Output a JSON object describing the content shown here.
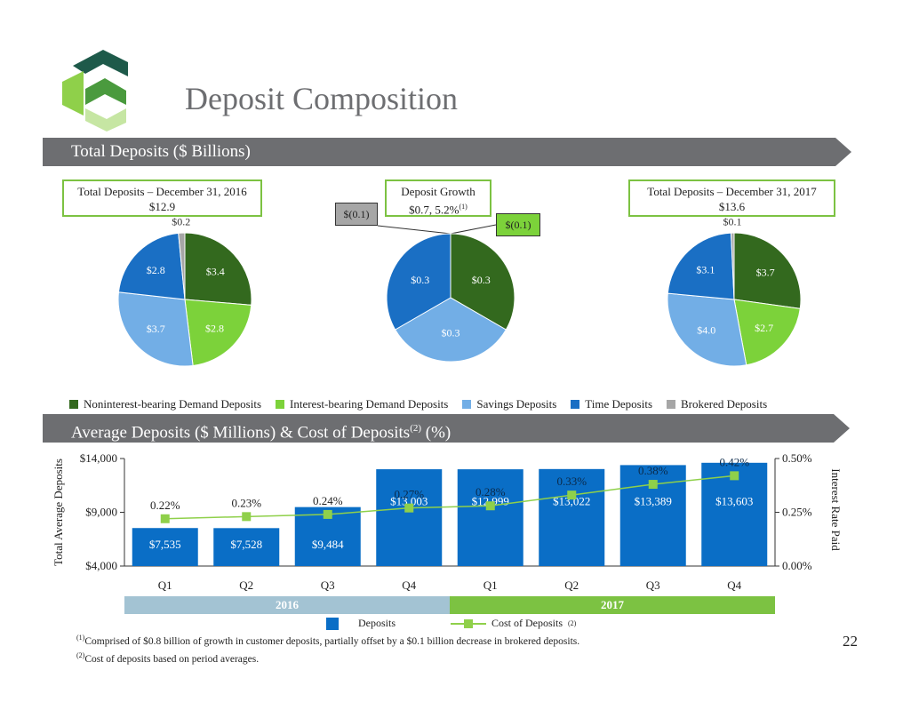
{
  "page": {
    "title": "Deposit Composition",
    "banner_total": "Total Deposits ($ Billions)",
    "banner_avg_main": "Average Deposits ($ Millions) & Cost of Deposits",
    "banner_avg_sup": "(2)",
    "banner_avg_tail": " (%)",
    "page_number": "22"
  },
  "colors": {
    "noninterest": "#33691e",
    "interest": "#7cd23a",
    "savings": "#72aee6",
    "time": "#1a6fc4",
    "brokered": "#a6a6a6",
    "bar": "#0a6ec6",
    "line": "#8fd04a",
    "marker": "#8fd04a",
    "year2016": "#a3c3d3",
    "year2017": "#7cc242",
    "banner": "#6d6e71"
  },
  "callouts": {
    "dec2016_label": "Total Deposits – December 31, 2016",
    "dec2016_value": "$12.9",
    "growth_label": "Deposit Growth",
    "growth_value": "$0.7, 5.2%",
    "growth_sup": "(1)",
    "dec2017_label": "Total Deposits – December 31, 2017",
    "dec2017_value": "$13.6",
    "neg_brokered": "$(0.1)",
    "neg_interest": "$(0.1)"
  },
  "legend": [
    {
      "label": "Noninterest-bearing Demand Deposits",
      "color_key": "noninterest"
    },
    {
      "label": "Interest-bearing Demand Deposits",
      "color_key": "interest"
    },
    {
      "label": "Savings Deposits",
      "color_key": "savings"
    },
    {
      "label": "Time Deposits",
      "color_key": "time"
    },
    {
      "label": "Brokered Deposits",
      "color_key": "brokered"
    }
  ],
  "chart_data": [
    {
      "type": "pie",
      "title": "Total Deposits – December 31, 2016",
      "slices": [
        {
          "label": "Noninterest-bearing Demand Deposits",
          "value": 3.4,
          "text": "$3.4",
          "color_key": "noninterest"
        },
        {
          "label": "Interest-bearing Demand Deposits",
          "value": 2.8,
          "text": "$2.8",
          "color_key": "interest"
        },
        {
          "label": "Savings Deposits",
          "value": 3.7,
          "text": "$3.7",
          "color_key": "savings"
        },
        {
          "label": "Time Deposits",
          "value": 2.8,
          "text": "$2.8",
          "color_key": "time"
        },
        {
          "label": "Brokered Deposits",
          "value": 0.2,
          "text": "$0.2",
          "color_key": "brokered"
        }
      ]
    },
    {
      "type": "pie",
      "title": "Deposit Growth",
      "slices": [
        {
          "label": "Noninterest-bearing Demand Deposits",
          "value": 0.3,
          "text": "$0.3",
          "color_key": "noninterest"
        },
        {
          "label": "Savings Deposits",
          "value": 0.3,
          "text": "$0.3",
          "color_key": "savings"
        },
        {
          "label": "Time Deposits",
          "value": 0.3,
          "text": "$0.3",
          "color_key": "time"
        }
      ],
      "negative": [
        {
          "label": "Brokered Deposits",
          "value": -0.1,
          "text": "$(0.1)"
        },
        {
          "label": "Interest-bearing Demand Deposits",
          "value": -0.1,
          "text": "$(0.1)"
        }
      ]
    },
    {
      "type": "pie",
      "title": "Total Deposits – December 31, 2017",
      "slices": [
        {
          "label": "Noninterest-bearing Demand Deposits",
          "value": 3.7,
          "text": "$3.7",
          "color_key": "noninterest"
        },
        {
          "label": "Interest-bearing Demand Deposits",
          "value": 2.7,
          "text": "$2.7",
          "color_key": "interest"
        },
        {
          "label": "Savings Deposits",
          "value": 4.0,
          "text": "$4.0",
          "color_key": "savings"
        },
        {
          "label": "Time Deposits",
          "value": 3.1,
          "text": "$3.1",
          "color_key": "time"
        },
        {
          "label": "Brokered Deposits",
          "value": 0.1,
          "text": "$0.1",
          "color_key": "brokered"
        }
      ]
    },
    {
      "type": "bar",
      "title": "Average Deposits ($ Millions) & Cost of Deposits (%)",
      "categories": [
        "Q1",
        "Q2",
        "Q3",
        "Q4",
        "Q1",
        "Q2",
        "Q3",
        "Q4"
      ],
      "years": [
        {
          "label": "2016",
          "quarters": 4
        },
        {
          "label": "2017",
          "quarters": 4
        }
      ],
      "series": [
        {
          "name": "Deposits",
          "axis": "left",
          "values": [
            7535,
            7528,
            9484,
            13003,
            12999,
            13022,
            13389,
            13603
          ],
          "labels": [
            "$7,535",
            "$7,528",
            "$9,484",
            "$13,003",
            "$12,999",
            "$13,022",
            "$13,389",
            "$13,603"
          ]
        },
        {
          "name": "Cost of Deposits",
          "axis": "right",
          "values": [
            0.22,
            0.23,
            0.24,
            0.27,
            0.28,
            0.33,
            0.38,
            0.42
          ],
          "labels": [
            "0.22%",
            "0.23%",
            "0.24%",
            "0.27%",
            "0.28%",
            "0.33%",
            "0.38%",
            "0.42%"
          ]
        }
      ],
      "ylabel": "Total Average Deposits",
      "y2label": "Interest Rate Paid",
      "ylim": [
        4000,
        14000
      ],
      "yticks": [
        4000,
        9000,
        14000
      ],
      "ytick_labels": [
        "$4,000",
        "$9,000",
        "$14,000"
      ],
      "y2lim": [
        0,
        0.5
      ],
      "y2ticks": [
        0,
        0.25,
        0.5
      ],
      "y2tick_labels": [
        "0.00%",
        "0.25%",
        "0.50%"
      ],
      "legend_deposits": "Deposits",
      "legend_cost": "Cost of Deposits",
      "legend_cost_sup": "(2)"
    }
  ],
  "footnotes": {
    "f1_sup": "(1)",
    "f1": "Comprised of $0.8 billion of growth in customer deposits, partially offset by a $0.1 billion decrease in brokered deposits.",
    "f2_sup": "(2)",
    "f2": "Cost of deposits based on period averages."
  }
}
